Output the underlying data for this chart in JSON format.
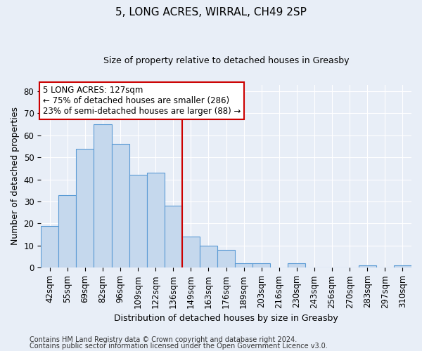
{
  "title1": "5, LONG ACRES, WIRRAL, CH49 2SP",
  "title2": "Size of property relative to detached houses in Greasby",
  "xlabel": "Distribution of detached houses by size in Greasby",
  "ylabel": "Number of detached properties",
  "bar_labels": [
    "42sqm",
    "55sqm",
    "69sqm",
    "82sqm",
    "96sqm",
    "109sqm",
    "122sqm",
    "136sqm",
    "149sqm",
    "163sqm",
    "176sqm",
    "189sqm",
    "203sqm",
    "216sqm",
    "230sqm",
    "243sqm",
    "256sqm",
    "270sqm",
    "283sqm",
    "297sqm",
    "310sqm"
  ],
  "bar_values": [
    19,
    33,
    54,
    65,
    56,
    42,
    43,
    28,
    14,
    10,
    8,
    2,
    2,
    0,
    2,
    0,
    0,
    0,
    1,
    0,
    1
  ],
  "bar_color": "#c5d8ed",
  "bar_edge_color": "#5b9bd5",
  "vline_color": "#cc0000",
  "vline_x": 7.5,
  "ylim": [
    0,
    83
  ],
  "yticks": [
    0,
    10,
    20,
    30,
    40,
    50,
    60,
    70,
    80
  ],
  "annotation_title": "5 LONG ACRES: 127sqm",
  "annotation_line1": "← 75% of detached houses are smaller (286)",
  "annotation_line2": "23% of semi-detached houses are larger (88) →",
  "footer1": "Contains HM Land Registry data © Crown copyright and database right 2024.",
  "footer2": "Contains public sector information licensed under the Open Government Licence v3.0.",
  "bg_color": "#e8eef7",
  "plot_bg_color": "#e8eef7",
  "grid_color": "#ffffff",
  "title1_fontsize": 11,
  "title2_fontsize": 9,
  "ylabel_fontsize": 9,
  "xlabel_fontsize": 9,
  "tick_fontsize": 8.5,
  "ann_fontsize": 8.5,
  "footer_fontsize": 7
}
